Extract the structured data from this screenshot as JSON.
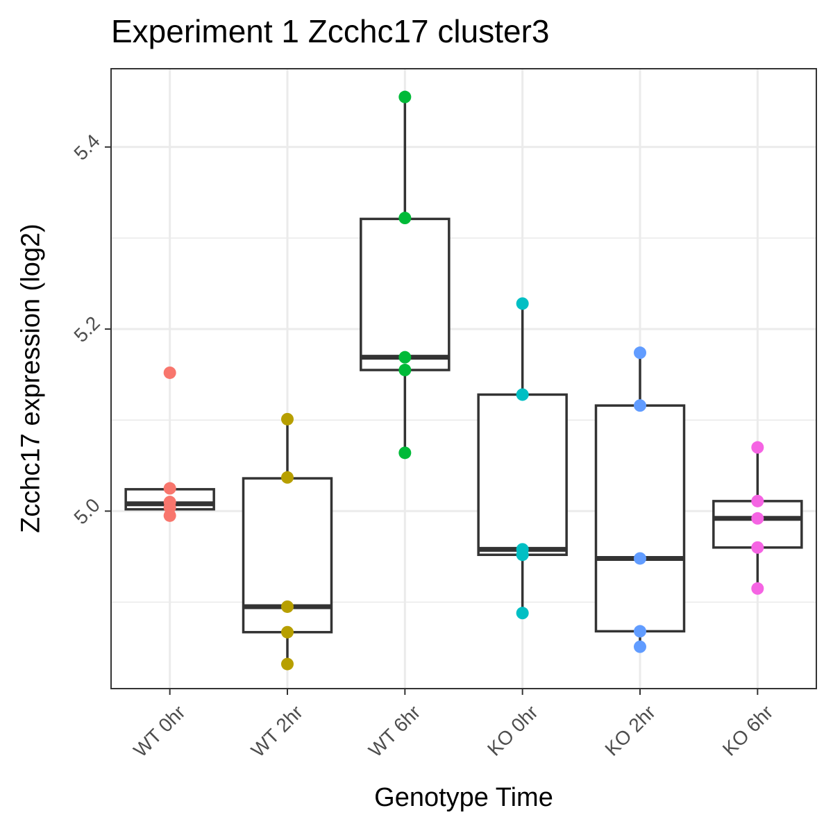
{
  "chart_data": {
    "type": "box",
    "title": "Experiment 1 Zcchc17 cluster3",
    "xlabel": "Genotype Time",
    "ylabel": "Zcchc17 expression (log2)",
    "ylim": [
      4.805,
      5.486
    ],
    "y_ticks": [
      5.0,
      5.2,
      5.4
    ],
    "y_tick_labels": [
      "5.0",
      "5.2",
      "5.4"
    ],
    "categories": [
      "WT 0hr",
      "WT 2hr",
      "WT 6hr",
      "KO 0hr",
      "KO 2hr",
      "KO 6hr"
    ],
    "grid": true,
    "legend": "none",
    "series": [
      {
        "name": "WT 0hr",
        "color": "#F8766D",
        "points": [
          5.152,
          5.025,
          5.01,
          5.004,
          4.995
        ],
        "box": {
          "q1": 5.002,
          "median": 5.008,
          "q3": 5.024,
          "whisker_low": 4.995,
          "whisker_high": 5.025
        }
      },
      {
        "name": "WT 2hr",
        "color": "#B79F00",
        "points": [
          5.101,
          5.037,
          4.895,
          4.867,
          4.832
        ],
        "box": {
          "q1": 4.867,
          "median": 4.895,
          "q3": 5.036,
          "whisker_low": 4.832,
          "whisker_high": 5.101
        }
      },
      {
        "name": "WT 6hr",
        "color": "#00BA38",
        "points": [
          5.455,
          5.322,
          5.169,
          5.155,
          5.064
        ],
        "box": {
          "q1": 5.155,
          "median": 5.169,
          "q3": 5.321,
          "whisker_low": 5.064,
          "whisker_high": 5.455
        }
      },
      {
        "name": "KO 0hr",
        "color": "#00BFC4",
        "points": [
          5.228,
          5.128,
          4.958,
          4.952,
          4.888
        ],
        "box": {
          "q1": 4.952,
          "median": 4.958,
          "q3": 5.128,
          "whisker_low": 4.888,
          "whisker_high": 5.228
        }
      },
      {
        "name": "KO 2hr",
        "color": "#619CFF",
        "points": [
          5.174,
          5.116,
          4.948,
          4.868,
          4.851
        ],
        "box": {
          "q1": 4.868,
          "median": 4.948,
          "q3": 5.116,
          "whisker_low": 4.851,
          "whisker_high": 5.174
        }
      },
      {
        "name": "KO 6hr",
        "color": "#F564E3",
        "points": [
          5.07,
          5.011,
          4.992,
          4.96,
          4.915
        ],
        "box": {
          "q1": 4.96,
          "median": 4.992,
          "q3": 5.011,
          "whisker_low": 4.915,
          "whisker_high": 5.07
        }
      }
    ]
  }
}
